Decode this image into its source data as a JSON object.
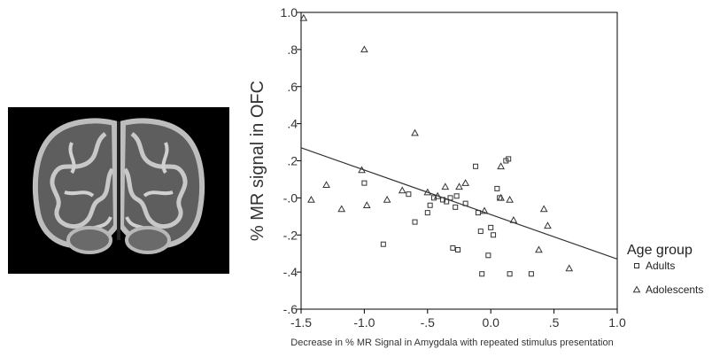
{
  "chart_data": {
    "type": "scatter",
    "title": "",
    "xlabel": "Decrease in % MR Signal in Amygdala with repeated stimulus presentation",
    "ylabel": "% MR signal in OFC",
    "xlim": [
      -1.5,
      1.0
    ],
    "ylim": [
      -0.6,
      1.0
    ],
    "x_ticks": [
      "-1.5",
      "-1.0",
      "-.5",
      "0.0",
      ".5",
      "1.0"
    ],
    "y_ticks": [
      "1.0",
      ".8",
      ".6",
      ".4",
      ".2",
      "-.0",
      "-.2",
      "-.4",
      "-.6"
    ],
    "grid": false,
    "legend": {
      "title": "Age group",
      "placement": "right"
    },
    "fit_line": {
      "x": [
        -1.5,
        1.0
      ],
      "y": [
        0.27,
        -0.33
      ]
    },
    "series": [
      {
        "name": "Adults",
        "marker": "square",
        "points": [
          [
            -1.0,
            0.08
          ],
          [
            -0.85,
            -0.25
          ],
          [
            -0.65,
            0.02
          ],
          [
            -0.6,
            -0.13
          ],
          [
            -0.5,
            -0.08
          ],
          [
            -0.48,
            -0.04
          ],
          [
            -0.45,
            0.0
          ],
          [
            -0.38,
            -0.01
          ],
          [
            -0.35,
            -0.02
          ],
          [
            -0.32,
            0.0
          ],
          [
            -0.3,
            -0.27
          ],
          [
            -0.28,
            -0.05
          ],
          [
            -0.27,
            0.01
          ],
          [
            -0.26,
            -0.28
          ],
          [
            -0.2,
            -0.03
          ],
          [
            -0.12,
            0.17
          ],
          [
            -0.1,
            -0.08
          ],
          [
            -0.08,
            -0.18
          ],
          [
            -0.07,
            -0.41
          ],
          [
            -0.02,
            -0.31
          ],
          [
            0.0,
            -0.16
          ],
          [
            0.02,
            -0.2
          ],
          [
            0.05,
            0.05
          ],
          [
            0.07,
            0.0
          ],
          [
            0.12,
            0.2
          ],
          [
            0.14,
            0.21
          ],
          [
            0.15,
            -0.41
          ],
          [
            0.32,
            -0.41
          ]
        ]
      },
      {
        "name": "Adolescents",
        "marker": "triangle",
        "points": [
          [
            -1.48,
            0.97
          ],
          [
            -1.42,
            -0.01
          ],
          [
            -1.3,
            0.07
          ],
          [
            -1.18,
            -0.06
          ],
          [
            -1.02,
            0.15
          ],
          [
            -1.0,
            0.8
          ],
          [
            -0.98,
            -0.04
          ],
          [
            -0.82,
            -0.01
          ],
          [
            -0.7,
            0.04
          ],
          [
            -0.6,
            0.35
          ],
          [
            -0.5,
            0.03
          ],
          [
            -0.42,
            0.01
          ],
          [
            -0.36,
            0.06
          ],
          [
            -0.25,
            0.06
          ],
          [
            -0.2,
            0.08
          ],
          [
            -0.05,
            -0.07
          ],
          [
            0.08,
            0.17
          ],
          [
            0.08,
            0.0
          ],
          [
            0.15,
            -0.01
          ],
          [
            0.18,
            -0.12
          ],
          [
            0.38,
            -0.28
          ],
          [
            0.42,
            -0.06
          ],
          [
            0.45,
            -0.15
          ],
          [
            0.62,
            -0.38
          ]
        ]
      }
    ]
  }
}
